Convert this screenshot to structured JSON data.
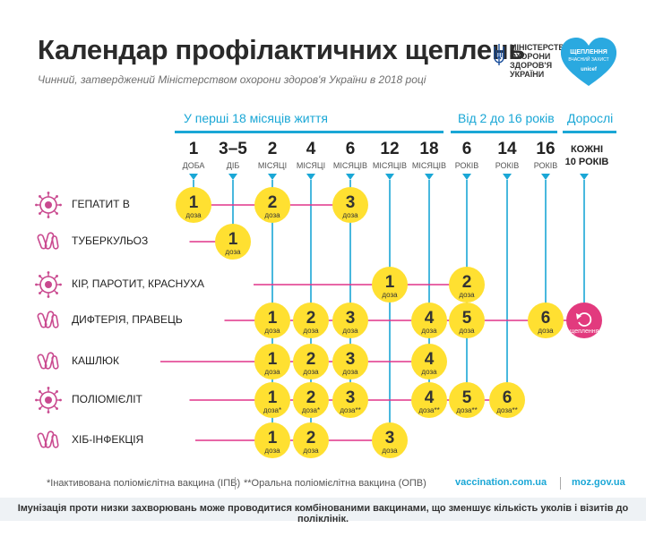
{
  "header": {
    "title": "Календар профілактичних щеплень",
    "subtitle": "Чинний, затверджений Міністерством охорони здоров'я України в 2018 році"
  },
  "logos": {
    "ministry_lines": [
      "МІНІСТЕРСТВО",
      "ОХОРОНИ",
      "ЗДОРОВ'Я",
      "УКРАЇНИ"
    ],
    "heart_lines": [
      "ЩЕПЛЕННЯ",
      "ВЧАСНИЙ ЗАХИСТ"
    ],
    "unicef": "unicef"
  },
  "periods": [
    {
      "label": "У перші 18 місяців життя"
    },
    {
      "label": "Від 2 до 16 років"
    },
    {
      "label": "Дорослі"
    }
  ],
  "ages": [
    {
      "num": "1",
      "unit": "ДОБА"
    },
    {
      "num": "3–5",
      "unit": "ДІБ"
    },
    {
      "num": "2",
      "unit": "МІСЯЦІ"
    },
    {
      "num": "4",
      "unit": "МІСЯЦІ"
    },
    {
      "num": "6",
      "unit": "МІСЯЦІВ"
    },
    {
      "num": "12",
      "unit": "МІСЯЦІВ"
    },
    {
      "num": "18",
      "unit": "МІСЯЦІВ"
    },
    {
      "num": "6",
      "unit": "РОКІВ"
    },
    {
      "num": "14",
      "unit": "РОКІВ"
    },
    {
      "num": "16",
      "unit": "РОКІВ"
    }
  ],
  "adult": {
    "line1": "КОЖНІ",
    "line2": "10 РОКІВ"
  },
  "dose_word": "доза",
  "booster_word": "щеплення",
  "diseases": [
    {
      "name": "ГЕПАТИТ В",
      "icon": "hepatitis-virus-icon",
      "doses": [
        {
          "col": 0,
          "n": "1",
          "mark": ""
        },
        {
          "col": 2,
          "n": "2",
          "mark": ""
        },
        {
          "col": 4,
          "n": "3",
          "mark": ""
        }
      ]
    },
    {
      "name": "ТУБЕРКУЛЬОЗ",
      "icon": "tuberculosis-bacteria-icon",
      "doses": [
        {
          "col": 1,
          "n": "1",
          "mark": ""
        }
      ]
    },
    {
      "name": "КІР, ПАРОТИТ, КРАСНУХА",
      "icon": "measles-virus-icon",
      "doses": [
        {
          "col": 5,
          "n": "1",
          "mark": ""
        },
        {
          "col": 7,
          "n": "2",
          "mark": ""
        }
      ]
    },
    {
      "name": "ДИФТЕРІЯ, ПРАВЕЦЬ",
      "icon": "diphtheria-bacteria-icon",
      "doses": [
        {
          "col": 2,
          "n": "1",
          "mark": ""
        },
        {
          "col": 3,
          "n": "2",
          "mark": ""
        },
        {
          "col": 4,
          "n": "3",
          "mark": ""
        },
        {
          "col": 6,
          "n": "4",
          "mark": ""
        },
        {
          "col": 7,
          "n": "5",
          "mark": ""
        },
        {
          "col": 9,
          "n": "6",
          "mark": ""
        }
      ],
      "adult_booster": true
    },
    {
      "name": "КАШЛЮК",
      "icon": "pertussis-bacteria-icon",
      "doses": [
        {
          "col": 2,
          "n": "1",
          "mark": ""
        },
        {
          "col": 3,
          "n": "2",
          "mark": ""
        },
        {
          "col": 4,
          "n": "3",
          "mark": ""
        },
        {
          "col": 6,
          "n": "4",
          "mark": ""
        }
      ]
    },
    {
      "name": "ПОЛІОМІЄЛІТ",
      "icon": "polio-virus-icon",
      "doses": [
        {
          "col": 2,
          "n": "1",
          "mark": "*"
        },
        {
          "col": 3,
          "n": "2",
          "mark": "*"
        },
        {
          "col": 4,
          "n": "3",
          "mark": "**"
        },
        {
          "col": 6,
          "n": "4",
          "mark": "**"
        },
        {
          "col": 7,
          "n": "5",
          "mark": "**"
        },
        {
          "col": 8,
          "n": "6",
          "mark": "**"
        }
      ]
    },
    {
      "name": "ХІБ-ІНФЕКЦІЯ",
      "icon": "hib-bacteria-icon",
      "doses": [
        {
          "col": 2,
          "n": "1",
          "mark": ""
        },
        {
          "col": 3,
          "n": "2",
          "mark": ""
        },
        {
          "col": 5,
          "n": "3",
          "mark": ""
        }
      ]
    }
  ],
  "footer": {
    "note1": "*Інактивована поліомієлітна вакцина (ІПВ)",
    "note2": "**Оральна поліомієлітна вакцина (ОПВ)",
    "site1": "vaccination.com.ua",
    "site2": "moz.gov.ua",
    "bottom": "Імунізація проти низки захворювань може проводитися комбінованими вакцинами, що зменшує кількість уколів і візитів до поліклінік."
  },
  "colors": {
    "accent": "#1aa7d6",
    "line": "#e0358a",
    "dose": "#ffe031",
    "booster": "#e23a7e",
    "icon_outline": "#c9498f"
  }
}
